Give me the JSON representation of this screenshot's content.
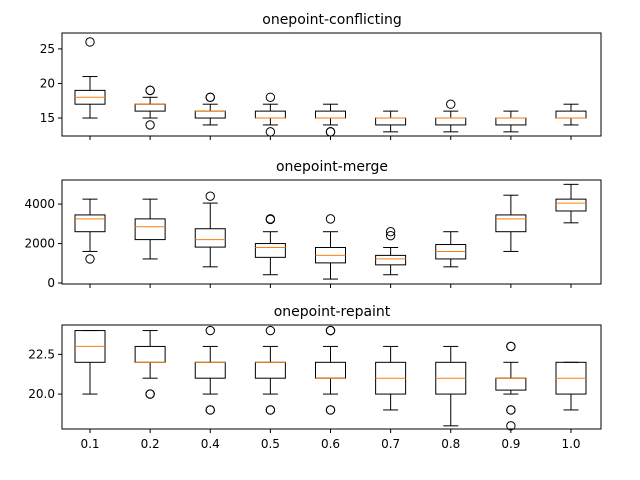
{
  "chart_data": [
    {
      "type": "box",
      "title": "onepoint-conflicting",
      "xlabel": "",
      "ylabel": "",
      "categories": [
        "0.1",
        "0.2",
        "0.4",
        "0.5",
        "0.6",
        "0.7",
        "0.8",
        "0.9",
        "1.0"
      ],
      "ylim": [
        12.4,
        27.3
      ],
      "yticks": [
        15,
        20,
        25
      ],
      "ytick_labels": [
        "15",
        "20",
        "25"
      ],
      "show_xtick_labels": false,
      "boxes": [
        {
          "whislo": 15,
          "q1": 17,
          "med": 18,
          "q3": 19,
          "whishi": 21,
          "fliers": [
            26
          ]
        },
        {
          "whislo": 15,
          "q1": 16,
          "med": 17,
          "q3": 17,
          "whishi": 18,
          "fliers": [
            14,
            19,
            19
          ]
        },
        {
          "whislo": 14,
          "q1": 15,
          "med": 16,
          "q3": 16,
          "whishi": 17,
          "fliers": [
            18,
            18
          ]
        },
        {
          "whislo": 14,
          "q1": 15,
          "med": 15,
          "q3": 16,
          "whishi": 17,
          "fliers": [
            13,
            18
          ]
        },
        {
          "whislo": 14,
          "q1": 15,
          "med": 15,
          "q3": 16,
          "whishi": 17,
          "fliers": [
            13,
            13
          ]
        },
        {
          "whislo": 13,
          "q1": 14,
          "med": 15,
          "q3": 15,
          "whishi": 16,
          "fliers": []
        },
        {
          "whislo": 13,
          "q1": 14,
          "med": 15,
          "q3": 15,
          "whishi": 16,
          "fliers": [
            17
          ]
        },
        {
          "whislo": 13,
          "q1": 14,
          "med": 15,
          "q3": 15,
          "whishi": 16,
          "fliers": []
        },
        {
          "whislo": 14,
          "q1": 15,
          "med": 15,
          "q3": 16,
          "whishi": 17,
          "fliers": []
        }
      ]
    },
    {
      "type": "box",
      "title": "onepoint-merge",
      "xlabel": "",
      "ylabel": "",
      "categories": [
        "0.1",
        "0.2",
        "0.4",
        "0.5",
        "0.6",
        "0.7",
        "0.8",
        "0.9",
        "1.0"
      ],
      "ylim": [
        -50,
        5220
      ],
      "yticks": [
        0,
        2000,
        4000
      ],
      "ytick_labels": [
        "0",
        "2000",
        "4000"
      ],
      "show_xtick_labels": false,
      "boxes": [
        {
          "whislo": 1600,
          "q1": 2600,
          "med": 3250,
          "q3": 3450,
          "whishi": 4250,
          "fliers": [
            1220
          ]
        },
        {
          "whislo": 1220,
          "q1": 2200,
          "med": 2850,
          "q3": 3250,
          "whishi": 4250,
          "fliers": []
        },
        {
          "whislo": 820,
          "q1": 1820,
          "med": 2200,
          "q3": 2750,
          "whishi": 4050,
          "fliers": [
            4400
          ]
        },
        {
          "whislo": 420,
          "q1": 1300,
          "med": 1800,
          "q3": 2000,
          "whishi": 2600,
          "fliers": [
            3220,
            3250
          ]
        },
        {
          "whislo": 200,
          "q1": 1020,
          "med": 1400,
          "q3": 1800,
          "whishi": 2600,
          "fliers": [
            3250
          ]
        },
        {
          "whislo": 420,
          "q1": 920,
          "med": 1220,
          "q3": 1400,
          "whishi": 1800,
          "fliers": [
            2400,
            2600
          ]
        },
        {
          "whislo": 820,
          "q1": 1220,
          "med": 1600,
          "q3": 1950,
          "whishi": 2600,
          "fliers": []
        },
        {
          "whislo": 1600,
          "q1": 2600,
          "med": 3250,
          "q3": 3450,
          "whishi": 4450,
          "fliers": []
        },
        {
          "whislo": 3050,
          "q1": 3650,
          "med": 4050,
          "q3": 4250,
          "whishi": 5000,
          "fliers": []
        }
      ]
    },
    {
      "type": "box",
      "title": "onepoint-repaint",
      "xlabel": "",
      "ylabel": "",
      "categories": [
        "0.1",
        "0.2",
        "0.4",
        "0.5",
        "0.6",
        "0.7",
        "0.8",
        "0.9",
        "1.0"
      ],
      "ylim": [
        17.8,
        24.35
      ],
      "yticks": [
        20.0,
        22.5
      ],
      "ytick_labels": [
        "20.0",
        "22.5"
      ],
      "show_xtick_labels": true,
      "boxes": [
        {
          "whislo": 20,
          "q1": 22,
          "med": 23,
          "q3": 24,
          "whishi": 24,
          "fliers": []
        },
        {
          "whislo": 21,
          "q1": 22,
          "med": 22,
          "q3": 23,
          "whishi": 24,
          "fliers": [
            20,
            20
          ]
        },
        {
          "whislo": 20,
          "q1": 21,
          "med": 22,
          "q3": 22,
          "whishi": 23,
          "fliers": [
            19,
            19,
            24
          ]
        },
        {
          "whislo": 20,
          "q1": 21,
          "med": 22,
          "q3": 22,
          "whishi": 23,
          "fliers": [
            19,
            19,
            24
          ]
        },
        {
          "whislo": 20,
          "q1": 21,
          "med": 21,
          "q3": 22,
          "whishi": 23,
          "fliers": [
            19,
            19,
            24,
            24
          ]
        },
        {
          "whislo": 19,
          "q1": 20,
          "med": 21,
          "q3": 22,
          "whishi": 23,
          "fliers": []
        },
        {
          "whislo": 18,
          "q1": 20,
          "med": 21,
          "q3": 22,
          "whishi": 23,
          "fliers": []
        },
        {
          "whislo": 20,
          "q1": 20.25,
          "med": 21,
          "q3": 21,
          "whishi": 22,
          "fliers": [
            18,
            19,
            19,
            23,
            23
          ]
        },
        {
          "whislo": 19,
          "q1": 20,
          "med": 21,
          "q3": 22,
          "whishi": 22,
          "fliers": []
        }
      ]
    }
  ],
  "colors": {
    "box_edge": "#000000",
    "median": "#ff7f0e",
    "background": "#ffffff"
  }
}
